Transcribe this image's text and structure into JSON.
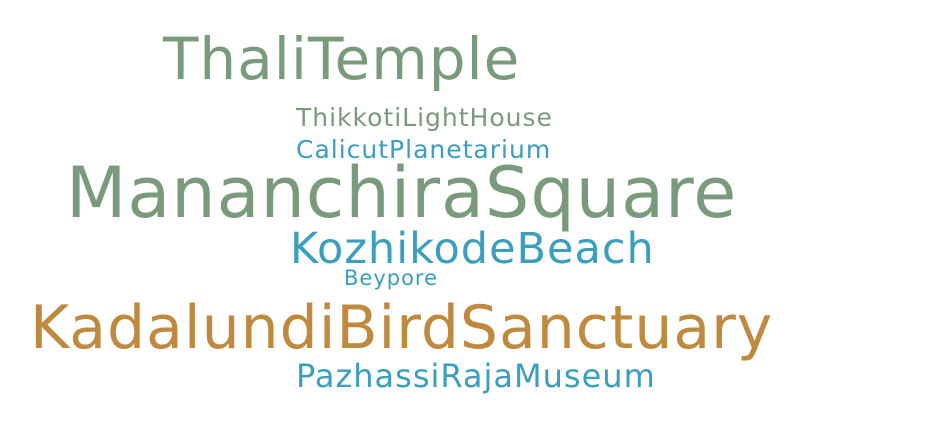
{
  "words": [
    {
      "text": "ThaliTemple",
      "color": "#7a9a7c"
    },
    {
      "text": "ThikkotiLightHouse",
      "color": "#7a9a7c"
    },
    {
      "text": "CalicutPlanetarium",
      "color": "#3a9fbf"
    },
    {
      "text": "MananchiraSquare",
      "color": "#7a9a7c"
    },
    {
      "text": "KozhikodeBeach",
      "color": "#3a9fbf"
    },
    {
      "text": "Beypore",
      "color": "#3a9fbf"
    },
    {
      "text": "KadalundiBirdSanctuary",
      "color": "#c08a3e"
    },
    {
      "text": "PazhassiRajaMuseum",
      "color": "#3a9fbf"
    }
  ]
}
